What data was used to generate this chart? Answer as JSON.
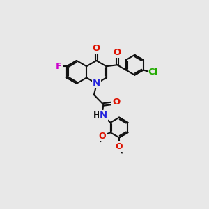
{
  "bg": "#e8e8e8",
  "bc": "#111111",
  "lw": 1.5,
  "colors": {
    "O": "#dd1100",
    "N": "#2222dd",
    "F": "#cc00cc",
    "Cl": "#22aa00",
    "C": "#111111"
  },
  "xl": [
    -1,
    11
  ],
  "yl": [
    -1,
    11
  ],
  "bl": 0.85
}
